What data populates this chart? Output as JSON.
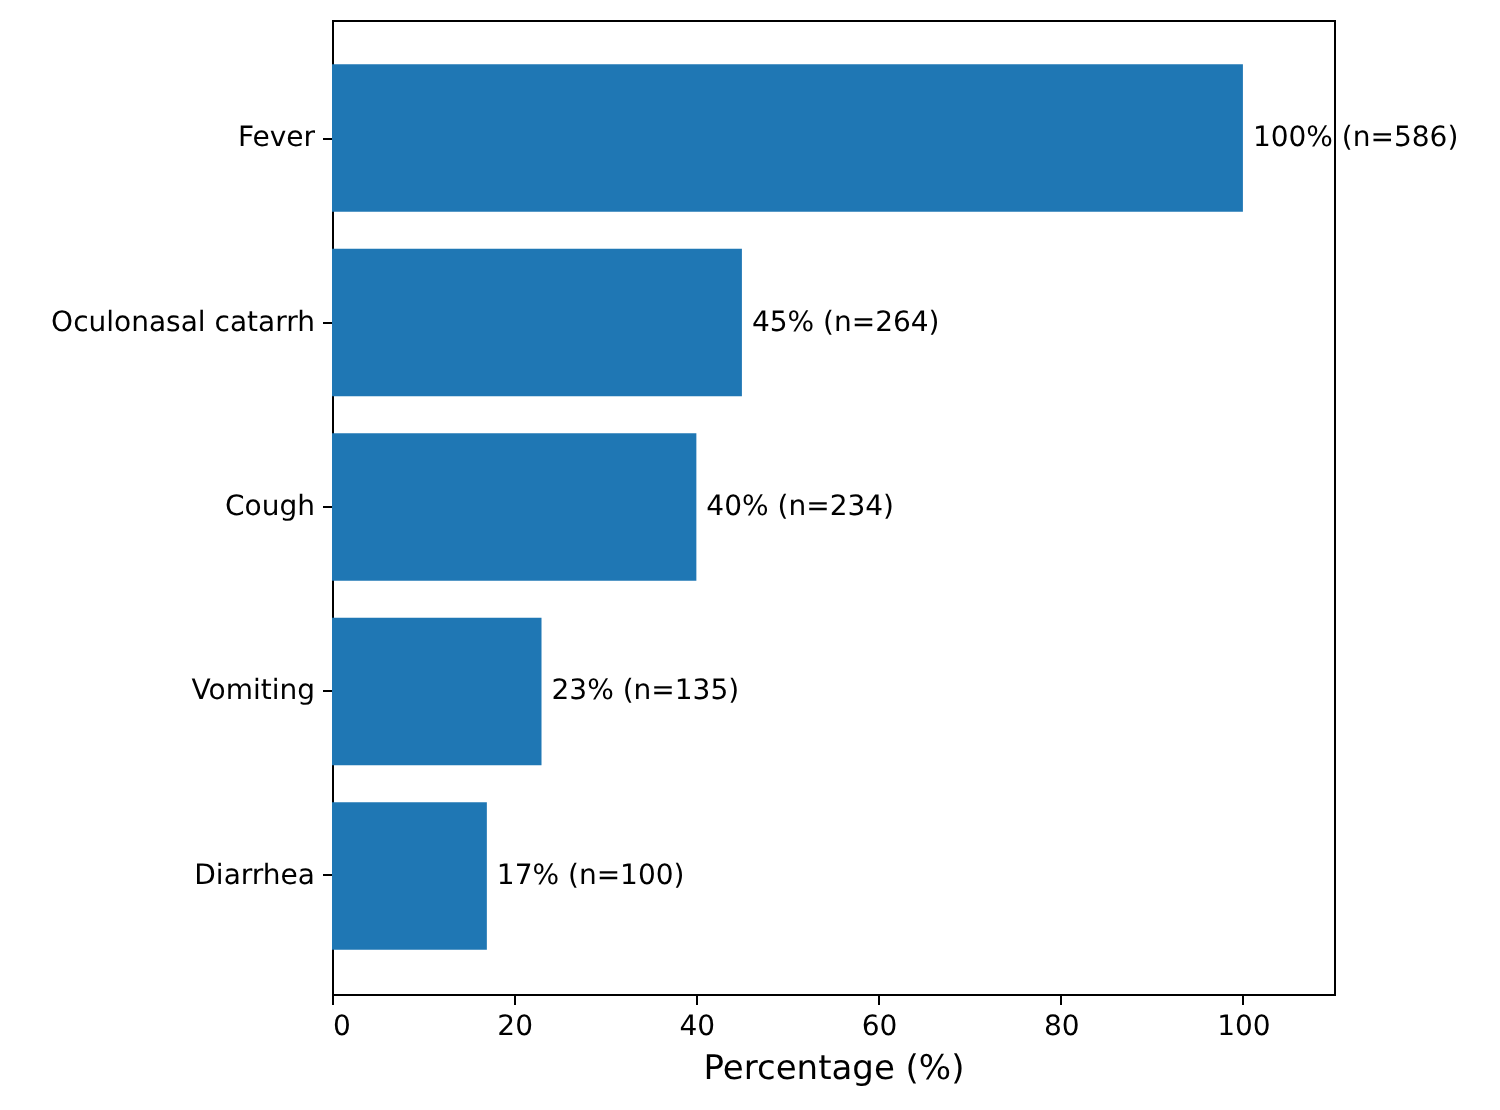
{
  "chart_data": {
    "type": "bar",
    "orientation": "horizontal",
    "categories": [
      "Fever",
      "Oculonasal catarrh",
      "Cough",
      "Vomiting",
      "Diarrhea"
    ],
    "values": [
      100,
      45,
      40,
      23,
      17
    ],
    "value_labels": [
      "100% (n=586)",
      "45% (n=264)",
      "40% (n=234)",
      "23% (n=135)",
      "17% (n=100)"
    ],
    "color": "#1f77b4",
    "xlabel": "Percentage (%)",
    "xlim": [
      0,
      110
    ],
    "xticks": [
      0,
      20,
      40,
      60,
      80,
      100
    ],
    "grid": false
  }
}
